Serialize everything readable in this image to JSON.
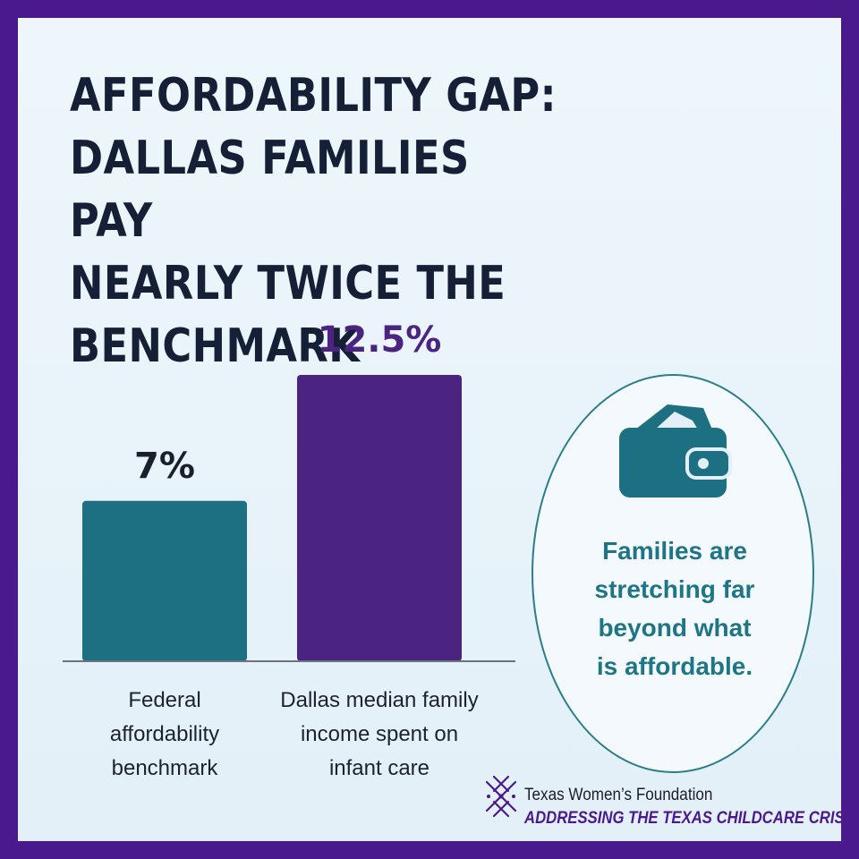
{
  "title": "AFFORDABILITY GAP:\nDALLAS FAMILIES PAY\nNEARLY TWICE THE\nBENCHMARK",
  "chart_data": {
    "type": "bar",
    "title": "AFFORDABILITY GAP: DALLAS FAMILIES PAY NEARLY TWICE THE BENCHMARK",
    "categories": [
      "Federal affordability benchmark",
      "Dallas median family income spent on infant care"
    ],
    "category_label_lines": [
      [
        "Federal",
        "affordability",
        "benchmark"
      ],
      [
        "Dallas median family",
        "income spent on",
        "infant care"
      ]
    ],
    "values": [
      7,
      12.5
    ],
    "value_labels": [
      "7%",
      "12.5%"
    ],
    "value_label_colors": [
      "#1a1f2e",
      "#4a2480"
    ],
    "bar_colors": [
      "#1d6f82",
      "#4a2480"
    ],
    "unit": "%",
    "ylim": [
      0,
      12.5
    ],
    "grid": false,
    "xlabel": "",
    "ylabel": ""
  },
  "callout": {
    "icon": "wallet-icon",
    "text": "Families are\nstretching far\nbeyond what\nis affordable."
  },
  "branding": {
    "organization": "Texas Women’s Foundation",
    "tagline": "ADDRESSING THE TEXAS CHILDCARE CRISIS"
  },
  "colors": {
    "frame": "#4a1a8c",
    "background": "#e8f3fa",
    "title": "#152037",
    "teal": "#1d6f82",
    "purple": "#4a2480",
    "callout_text": "#1e7586"
  }
}
